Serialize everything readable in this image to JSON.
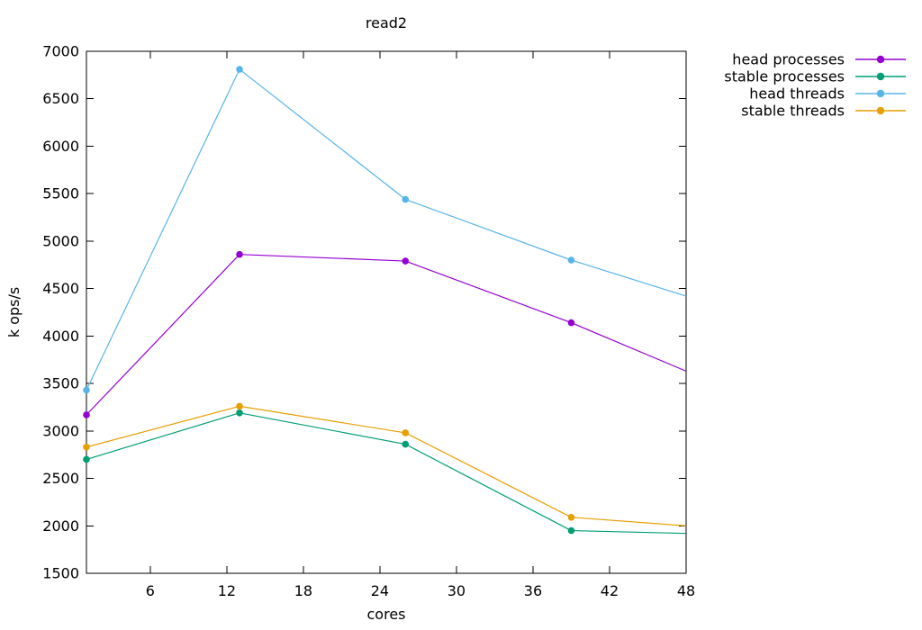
{
  "chart_data": {
    "type": "line",
    "title": "read2",
    "xlabel": "cores",
    "ylabel": "k ops/s",
    "xlim": [
      1,
      48
    ],
    "ylim": [
      1500,
      7000
    ],
    "xticks": [
      6,
      12,
      18,
      24,
      30,
      36,
      42,
      48
    ],
    "yticks": [
      1500,
      2000,
      2500,
      3000,
      3500,
      4000,
      4500,
      5000,
      5500,
      6000,
      6500,
      7000
    ],
    "grid": false,
    "legend_position": "outside-top-right",
    "background_color": "#ffffff",
    "axis_color": "#000000",
    "series": [
      {
        "name": "head processes",
        "color": "#9400d3",
        "x": [
          1,
          13,
          26,
          39,
          48
        ],
        "y": [
          3170,
          4860,
          4790,
          4140,
          3630
        ],
        "markers": [
          true,
          true,
          true,
          true,
          false
        ]
      },
      {
        "name": "stable processes",
        "color": "#009e73",
        "x": [
          1,
          13,
          26,
          39,
          48
        ],
        "y": [
          2700,
          3190,
          2860,
          1950,
          1920
        ],
        "markers": [
          true,
          true,
          true,
          true,
          false
        ]
      },
      {
        "name": "head threads",
        "color": "#56b4e9",
        "x": [
          1,
          13,
          26,
          39,
          48
        ],
        "y": [
          3430,
          6810,
          5440,
          4800,
          4420
        ],
        "markers": [
          true,
          true,
          true,
          true,
          false
        ]
      },
      {
        "name": "stable threads",
        "color": "#e69f00",
        "x": [
          1,
          13,
          26,
          39,
          48
        ],
        "y": [
          2830,
          3260,
          2980,
          2090,
          2000
        ],
        "markers": [
          true,
          true,
          true,
          true,
          false
        ]
      }
    ]
  }
}
